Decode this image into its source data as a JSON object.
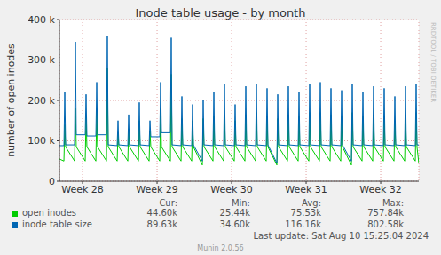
{
  "chart_data": {
    "type": "line",
    "title": "Inode table usage - by month",
    "y_label": "number of open inodes",
    "side_text": "RRDTOOL / TOBI OETIKER",
    "footer": "Last update: Sat Aug 10 15:25:04 2024",
    "credit": "Munin 2.0.56",
    "stats_headers": [
      "Cur:",
      "Min:",
      "Avg:",
      "Max:"
    ],
    "grid": true,
    "xlim": [
      0,
      33.75
    ],
    "xticks": [
      {
        "value": 2.17,
        "label": "Week 28"
      },
      {
        "value": 9.17,
        "label": "Week 29"
      },
      {
        "value": 16.17,
        "label": "Week 30"
      },
      {
        "value": 23.17,
        "label": "Week 31"
      },
      {
        "value": 30.17,
        "label": "Week 32"
      }
    ],
    "ylim": [
      0,
      400000
    ],
    "yticks": [
      0,
      {
        "value": 100000,
        "label": "100 k"
      },
      {
        "value": 200000,
        "label": "200 k"
      },
      {
        "value": 300000,
        "label": "300 k"
      },
      {
        "value": 400000,
        "label": "400 k"
      }
    ],
    "x": [
      0,
      0.42,
      0.5,
      0.58,
      1.42,
      1.5,
      1.58,
      2.42,
      2.5,
      2.58,
      3.42,
      3.5,
      3.58,
      4.42,
      4.5,
      4.58,
      5.42,
      5.5,
      5.58,
      6.42,
      6.5,
      6.58,
      7.42,
      7.5,
      7.58,
      8.42,
      8.5,
      8.58,
      9.42,
      9.5,
      9.58,
      10.42,
      10.5,
      10.58,
      11.42,
      11.5,
      11.58,
      12.42,
      12.5,
      12.58,
      13.42,
      13.5,
      13.58,
      14.42,
      14.5,
      14.58,
      15.42,
      15.5,
      15.58,
      16.42,
      16.5,
      16.58,
      17.42,
      17.5,
      17.58,
      18.42,
      18.5,
      18.58,
      19.42,
      19.5,
      19.58,
      20.42,
      20.5,
      20.58,
      21.42,
      21.5,
      21.58,
      22.42,
      22.5,
      22.58,
      23.42,
      23.5,
      23.58,
      24.42,
      24.5,
      24.58,
      25.42,
      25.5,
      25.58,
      26.42,
      26.5,
      26.58,
      27.42,
      27.5,
      27.58,
      28.42,
      28.5,
      28.58,
      29.42,
      29.5,
      29.58,
      30.42,
      30.5,
      30.58,
      31.42,
      31.5,
      31.58,
      32.42,
      32.5,
      32.58,
      33.42,
      33.5,
      33.58,
      33.75
    ],
    "series": [
      {
        "name": "open inodes",
        "color": "#00cc00",
        "stats": [
          "44.60k",
          "25.44k",
          "75.53k",
          "757.84k"
        ],
        "values": [
          55000,
          50000,
          140000,
          85000,
          50000,
          180000,
          85000,
          50000,
          160000,
          85000,
          50000,
          175000,
          85000,
          50000,
          280000,
          85000,
          50000,
          120000,
          85000,
          50000,
          130000,
          85000,
          50000,
          150000,
          85000,
          50000,
          125000,
          85000,
          50000,
          180000,
          85000,
          50000,
          265000,
          85000,
          50000,
          155000,
          85000,
          50000,
          150000,
          85000,
          40000,
          155000,
          85000,
          50000,
          160000,
          85000,
          50000,
          165000,
          85000,
          50000,
          150000,
          85000,
          50000,
          165000,
          85000,
          50000,
          170000,
          85000,
          50000,
          160000,
          85000,
          40000,
          155000,
          85000,
          50000,
          165000,
          85000,
          50000,
          160000,
          85000,
          50000,
          170000,
          85000,
          50000,
          170000,
          85000,
          50000,
          165000,
          85000,
          50000,
          160000,
          85000,
          40000,
          170000,
          85000,
          50000,
          160000,
          85000,
          50000,
          165000,
          85000,
          50000,
          160000,
          85000,
          50000,
          150000,
          85000,
          50000,
          165000,
          85000,
          50000,
          170000,
          85000,
          44600
        ]
      },
      {
        "name": "inode table size",
        "color": "#0066b3",
        "stats": [
          "89.63k",
          "34.60k",
          "116.16k",
          "802.58k"
        ],
        "values": [
          88000,
          88000,
          220000,
          90000,
          90000,
          345000,
          115000,
          115000,
          215000,
          112000,
          112000,
          245000,
          115000,
          115000,
          360000,
          90000,
          88000,
          150000,
          90000,
          88000,
          165000,
          90000,
          88000,
          195000,
          90000,
          88000,
          150000,
          110000,
          110000,
          245000,
          120000,
          120000,
          355000,
          90000,
          88000,
          210000,
          90000,
          88000,
          190000,
          90000,
          50000,
          200000,
          90000,
          88000,
          220000,
          90000,
          88000,
          240000,
          90000,
          88000,
          190000,
          90000,
          88000,
          235000,
          90000,
          88000,
          240000,
          90000,
          88000,
          230000,
          90000,
          45000,
          215000,
          90000,
          88000,
          235000,
          90000,
          88000,
          220000,
          90000,
          88000,
          240000,
          90000,
          88000,
          245000,
          90000,
          88000,
          230000,
          90000,
          88000,
          225000,
          90000,
          50000,
          240000,
          90000,
          88000,
          220000,
          90000,
          88000,
          235000,
          90000,
          88000,
          230000,
          90000,
          88000,
          210000,
          90000,
          88000,
          235000,
          90000,
          88000,
          240000,
          90000,
          89630
        ]
      }
    ]
  }
}
